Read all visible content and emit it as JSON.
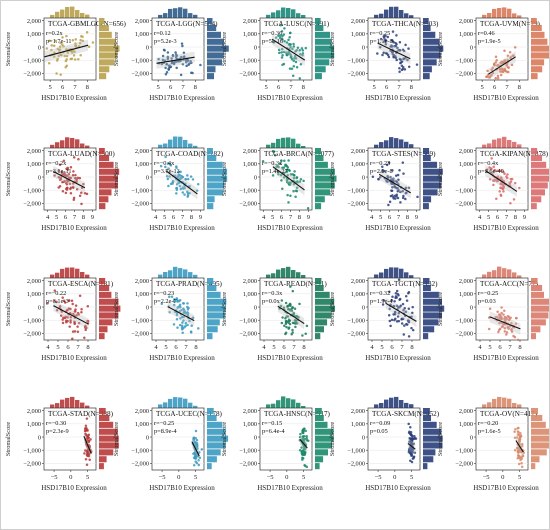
{
  "chart_data": {
    "type": "scatter",
    "xlabel": "HSD17B10 Expression",
    "ylabel": "StromalScore",
    "y_ticks": [
      "2,000",
      "1,000",
      "0",
      "−1,000",
      "−2,000"
    ],
    "y_range": [
      -2500,
      2200
    ],
    "panels": [
      {
        "title": "TCGA-GBMLGG(N=656)",
        "r": "r=0.2x",
        "p": "p=1.7e-11",
        "color": "#b8a04a",
        "x_ticks": [
          "5",
          "6",
          "7",
          "8"
        ],
        "x_range": [
          4.5,
          8.7
        ],
        "x_center": 6.3,
        "x_spread": 0.8,
        "y_center": -300,
        "y_spread": 600,
        "slope": 250
      },
      {
        "title": "TCGA-LGG(N=504)",
        "r": "r=0.12",
        "p": "p=5.2e-3",
        "color": "#2d5c8a",
        "x_ticks": [
          "5",
          "6",
          "7",
          "8"
        ],
        "x_range": [
          4.5,
          8.7
        ],
        "x_center": 6.4,
        "x_spread": 0.7,
        "y_center": -1000,
        "y_spread": 500,
        "slope": 150
      },
      {
        "title": "TCGA-LUSC(N=491)",
        "r": "r=−0.36",
        "p": "p=5e-16",
        "color": "#1a8a7a",
        "x_ticks": [
          "5",
          "6",
          "7",
          "8"
        ],
        "x_range": [
          4.5,
          8.7
        ],
        "x_center": 6.8,
        "x_spread": 0.6,
        "y_center": -200,
        "y_spread": 700,
        "slope": -600
      },
      {
        "title": "TCGA-THCA(N=503)",
        "r": "r=−0.25",
        "p": "p=1.1e-8",
        "color": "#2a3f7a",
        "x_ticks": [
          "5",
          "6",
          "7",
          "8"
        ],
        "x_range": [
          4.5,
          8.7
        ],
        "x_center": 6.6,
        "x_spread": 0.6,
        "y_center": -300,
        "y_spread": 600,
        "slope": -450
      },
      {
        "title": "TCGA-UVM(N=79)",
        "r": "r=0.46",
        "p": "p=1.9e-5",
        "color": "#d97a5a",
        "x_ticks": [
          "5",
          "6",
          "7",
          "8"
        ],
        "x_range": [
          4.5,
          8.7
        ],
        "x_center": 6.6,
        "x_spread": 0.5,
        "y_center": -1400,
        "y_spread": 400,
        "slope": 600
      },
      {
        "title": "TCGA-LUAD(N=500)",
        "r": "r=−0.2x",
        "p": "p=3.1e-11",
        "color": "#b83a3a",
        "x_ticks": [
          "4",
          "5",
          "6",
          "7",
          "8",
          "9"
        ],
        "x_range": [
          3.6,
          9.4
        ],
        "x_center": 6.4,
        "x_spread": 0.8,
        "y_center": -200,
        "y_spread": 700,
        "slope": -350
      },
      {
        "title": "TCGA-COAD(N=282)",
        "r": "r=−0.4x",
        "p": "p=3.7e-13",
        "color": "#3a9ac0",
        "x_ticks": [
          "4",
          "5",
          "6",
          "7",
          "8",
          "9"
        ],
        "x_range": [
          3.6,
          9.4
        ],
        "x_center": 6.9,
        "x_spread": 0.8,
        "y_center": -400,
        "y_spread": 700,
        "slope": -500
      },
      {
        "title": "TCGA-BRCA(N=1077)",
        "r": "r=−0.3x",
        "p": "p=1.4e-27",
        "color": "#1a8a6a",
        "x_ticks": [
          "4",
          "5",
          "6",
          "7",
          "8",
          "9"
        ],
        "x_range": [
          3.6,
          9.4
        ],
        "x_center": 6.8,
        "x_spread": 0.8,
        "y_center": -100,
        "y_spread": 700,
        "slope": -500
      },
      {
        "title": "TCGA-STES(N=569)",
        "r": "r=−0.23",
        "p": "p=2.1e-8",
        "color": "#2a3f7a",
        "x_ticks": [
          "4",
          "5",
          "6",
          "7",
          "8",
          "9"
        ],
        "x_range": [
          3.6,
          9.4
        ],
        "x_center": 6.6,
        "x_spread": 0.8,
        "y_center": -500,
        "y_spread": 700,
        "slope": -400
      },
      {
        "title": "TCGA-KIPAN(N=878)",
        "r": "r=−0.4x",
        "p": "p=2.6e-40",
        "color": "#d96a6a",
        "x_ticks": [
          "4",
          "5",
          "6",
          "7",
          "8",
          "9"
        ],
        "x_range": [
          3.6,
          9.4
        ],
        "x_center": 6.4,
        "x_spread": 0.8,
        "y_center": -300,
        "y_spread": 600,
        "slope": -450
      },
      {
        "title": "TCGA-ESCA(N=181)",
        "r": "r=−0.22",
        "p": "p=3.1e-3",
        "color": "#b83a3a",
        "x_ticks": [
          "4",
          "5",
          "6",
          "7",
          "8"
        ],
        "x_range": [
          3.6,
          8.8
        ],
        "x_center": 6.3,
        "x_spread": 0.8,
        "y_center": -600,
        "y_spread": 700,
        "slope": -400
      },
      {
        "title": "TCGA-PRAD(N=495)",
        "r": "r=−0.23",
        "p": "p=2.2e-7",
        "color": "#3a9ac0",
        "x_ticks": [
          "4",
          "5",
          "6",
          "7",
          "8"
        ],
        "x_range": [
          3.6,
          8.8
        ],
        "x_center": 6.5,
        "x_spread": 0.6,
        "y_center": -500,
        "y_spread": 600,
        "slope": -400
      },
      {
        "title": "TCGA-READ(N=91)",
        "r": "r=−0.3x",
        "p": "p=0.0x",
        "color": "#1a7a5a",
        "x_ticks": [
          "4",
          "5",
          "6",
          "7",
          "8"
        ],
        "x_range": [
          3.6,
          8.8
        ],
        "x_center": 6.7,
        "x_spread": 0.6,
        "y_center": -600,
        "y_spread": 700,
        "slope": -500
      },
      {
        "title": "TCGA-TGCT(N=132)",
        "r": "r=−0.32",
        "p": "p=1.9e-4",
        "color": "#2a3f7a",
        "x_ticks": [
          "4",
          "5",
          "6",
          "7",
          "8"
        ],
        "x_range": [
          3.6,
          8.8
        ],
        "x_center": 6.9,
        "x_spread": 0.7,
        "y_center": -400,
        "y_spread": 700,
        "slope": -450
      },
      {
        "title": "TCGA-ACC(N=77)",
        "r": "r=−0.25",
        "p": "p=0.03",
        "color": "#d97a6a",
        "x_ticks": [
          "4",
          "5",
          "6",
          "7",
          "8"
        ],
        "x_range": [
          3.6,
          8.8
        ],
        "x_center": 6.5,
        "x_spread": 0.7,
        "y_center": -1200,
        "y_spread": 500,
        "slope": -300
      },
      {
        "title": "TCGA-STAD(N=388)",
        "r": "r=−0.30",
        "p": "p=2.3e-9",
        "color": "#b83a3a",
        "x_ticks": [
          "−5",
          "0",
          "5"
        ],
        "x_range": [
          -8,
          7.5
        ],
        "x_center": 5.0,
        "x_spread": 0.5,
        "y_center": -600,
        "y_spread": 700,
        "slope": -600
      },
      {
        "title": "TCGA-UCEC(N=178)",
        "r": "r=−0.25",
        "p": "p=8.9e-4",
        "color": "#3a9ac0",
        "x_ticks": [
          "−5",
          "0",
          "5"
        ],
        "x_range": [
          -8,
          7.5
        ],
        "x_center": 5.0,
        "x_spread": 0.5,
        "y_center": -900,
        "y_spread": 600,
        "slope": -500
      },
      {
        "title": "TCGA-HNSC(N=517)",
        "r": "r=−0.15",
        "p": "p=6.4e-4",
        "color": "#1a8a6a",
        "x_ticks": [
          "−5",
          "0",
          "5"
        ],
        "x_range": [
          -8,
          7.5
        ],
        "x_center": 5.0,
        "x_spread": 0.5,
        "y_center": -500,
        "y_spread": 700,
        "slope": -300
      },
      {
        "title": "TCGA-SKCM(N=452)",
        "r": "r=−0.09",
        "p": "p=0.05",
        "color": "#2a3f7a",
        "x_ticks": [
          "−5",
          "0",
          "5"
        ],
        "x_range": [
          -8,
          7.5
        ],
        "x_center": 5.0,
        "x_spread": 0.5,
        "y_center": -700,
        "y_spread": 600,
        "slope": -200
      },
      {
        "title": "TCGA-OV(N=417)",
        "r": "r=−0.20",
        "p": "p=1.6e-5",
        "color": "#d98a6a",
        "x_ticks": [
          "−5",
          "0",
          "5"
        ],
        "x_range": [
          -8,
          7.5
        ],
        "x_center": 5.0,
        "x_spread": 0.5,
        "y_center": -700,
        "y_spread": 600,
        "slope": -400
      }
    ]
  }
}
